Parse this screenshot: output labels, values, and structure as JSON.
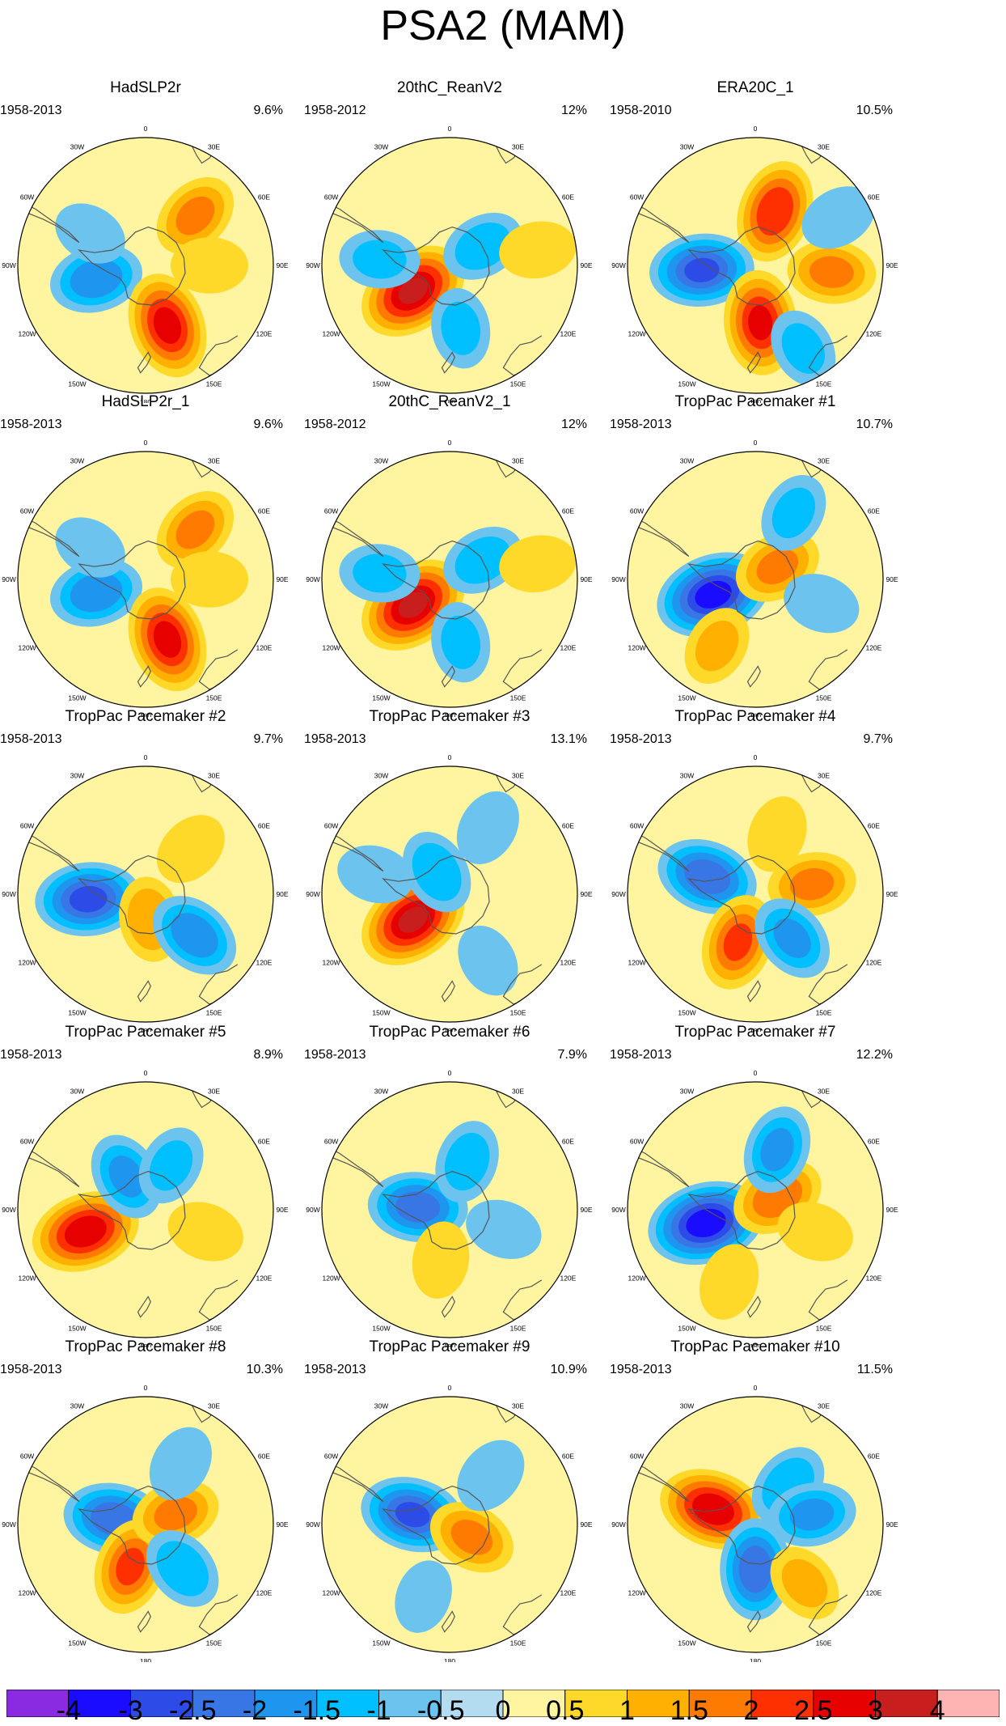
{
  "title": "PSA2 (MAM)",
  "longitude_labels": [
    "0",
    "30E",
    "60E",
    "90E",
    "120E",
    "150E",
    "180",
    "150W",
    "120W",
    "90W",
    "60W",
    "30W"
  ],
  "chart_data": {
    "type": "heatmap",
    "projection": "south polar stereographic",
    "title": "PSA2 (MAM)",
    "colorbar": {
      "levels": [
        -4,
        -3,
        -2.5,
        -2,
        -1.5,
        -1,
        -0.5,
        0,
        0.5,
        1,
        1.5,
        2,
        2.5,
        3,
        4
      ],
      "level_labels": [
        "-4",
        "-3",
        "-2.5",
        "-2",
        "-1.5",
        "-1",
        "-0.5",
        "0",
        "0.5",
        "1",
        "1.5",
        "2",
        "2.5",
        "3",
        "4"
      ],
      "colors": [
        "#8a2be2",
        "#1a0dff",
        "#2d4be6",
        "#3876e6",
        "#1e96f0",
        "#00bfff",
        "#6cc4ee",
        "#b4dcf0",
        "#fff5a0",
        "#ffd92a",
        "#ffb000",
        "#ff7a00",
        "#ff3000",
        "#e60000",
        "#c81e1e",
        "#ffb4b4"
      ]
    },
    "panels": [
      {
        "title": "HadSLP2r",
        "years": "1958-2013",
        "variance": "9.6%",
        "anomalies": [
          {
            "lon": 45,
            "r": 0.55,
            "value": 1.5
          },
          {
            "lon": 255,
            "r": 0.4,
            "value": -1.8
          },
          {
            "lon": 160,
            "r": 0.5,
            "value": 2.6
          },
          {
            "lon": 90,
            "r": 0.5,
            "value": 0.8
          },
          {
            "lon": 300,
            "r": 0.5,
            "value": -0.6
          }
        ]
      },
      {
        "title": "20thC_ReanV2",
        "years": "1958-2012",
        "variance": "12%",
        "anomalies": [
          {
            "lon": 235,
            "r": 0.35,
            "value": 3.0
          },
          {
            "lon": 60,
            "r": 0.3,
            "value": -1.2
          },
          {
            "lon": 170,
            "r": 0.5,
            "value": -1.0
          },
          {
            "lon": 275,
            "r": 0.55,
            "value": -1.0
          },
          {
            "lon": 80,
            "r": 0.7,
            "value": 0.8
          }
        ]
      },
      {
        "title": "ERA20C_1",
        "years": "1958-2010",
        "variance": "10.5%",
        "anomalies": [
          {
            "lon": 20,
            "r": 0.45,
            "value": 2.4
          },
          {
            "lon": 265,
            "r": 0.42,
            "value": -2.5
          },
          {
            "lon": 175,
            "r": 0.45,
            "value": 2.5
          },
          {
            "lon": 95,
            "r": 0.6,
            "value": 1.5
          },
          {
            "lon": 60,
            "r": 0.75,
            "value": -0.8
          },
          {
            "lon": 150,
            "r": 0.75,
            "value": -1.0
          }
        ]
      },
      {
        "title": "HadSLP2r_1",
        "years": "1958-2013",
        "variance": "9.6%",
        "anomalies": [
          {
            "lon": 45,
            "r": 0.55,
            "value": 1.5
          },
          {
            "lon": 255,
            "r": 0.4,
            "value": -1.8
          },
          {
            "lon": 160,
            "r": 0.5,
            "value": 2.6
          },
          {
            "lon": 90,
            "r": 0.5,
            "value": 0.8
          },
          {
            "lon": 300,
            "r": 0.5,
            "value": -0.6
          }
        ]
      },
      {
        "title": "20thC_ReanV2_1",
        "years": "1958-2012",
        "variance": "12%",
        "anomalies": [
          {
            "lon": 235,
            "r": 0.35,
            "value": 3.0
          },
          {
            "lon": 60,
            "r": 0.3,
            "value": -1.2
          },
          {
            "lon": 170,
            "r": 0.5,
            "value": -1.0
          },
          {
            "lon": 275,
            "r": 0.55,
            "value": -1.0
          },
          {
            "lon": 80,
            "r": 0.7,
            "value": 0.8
          }
        ]
      },
      {
        "title": "TropPac Pacemaker #1",
        "years": "1958-2013",
        "variance": "10.7%",
        "anomalies": [
          {
            "lon": 250,
            "r": 0.35,
            "value": -3.2
          },
          {
            "lon": 60,
            "r": 0.2,
            "value": 1.5
          },
          {
            "lon": 30,
            "r": 0.6,
            "value": -1.0
          },
          {
            "lon": 210,
            "r": 0.6,
            "value": 1.0
          },
          {
            "lon": 110,
            "r": 0.55,
            "value": -0.8
          }
        ]
      },
      {
        "title": "TropPac Pacemaker #2",
        "years": "1958-2013",
        "variance": "9.7%",
        "anomalies": [
          {
            "lon": 265,
            "r": 0.45,
            "value": -2.6
          },
          {
            "lon": 170,
            "r": 0.2,
            "value": 1.3
          },
          {
            "lon": 130,
            "r": 0.5,
            "value": -1.8
          },
          {
            "lon": 45,
            "r": 0.5,
            "value": 0.8
          }
        ]
      },
      {
        "title": "TropPac Pacemaker #3",
        "years": "1958-2013",
        "variance": "13.1%",
        "anomalies": [
          {
            "lon": 235,
            "r": 0.35,
            "value": 3.0
          },
          {
            "lon": 330,
            "r": 0.2,
            "value": -1.3
          },
          {
            "lon": 30,
            "r": 0.6,
            "value": -0.8
          },
          {
            "lon": 285,
            "r": 0.6,
            "value": -0.8
          },
          {
            "lon": 150,
            "r": 0.6,
            "value": -0.6
          }
        ]
      },
      {
        "title": "TropPac Pacemaker #4",
        "years": "1958-2013",
        "variance": "9.7%",
        "anomalies": [
          {
            "lon": 290,
            "r": 0.4,
            "value": -2.3
          },
          {
            "lon": 200,
            "r": 0.4,
            "value": 2.0
          },
          {
            "lon": 80,
            "r": 0.45,
            "value": 1.5
          },
          {
            "lon": 140,
            "r": 0.45,
            "value": -1.5
          },
          {
            "lon": 20,
            "r": 0.5,
            "value": 0.8
          }
        ]
      },
      {
        "title": "TropPac Pacemaker #5",
        "years": "1958-2013",
        "variance": "8.9%",
        "anomalies": [
          {
            "lon": 250,
            "r": 0.5,
            "value": 2.8
          },
          {
            "lon": 330,
            "r": 0.3,
            "value": -1.5
          },
          {
            "lon": 30,
            "r": 0.4,
            "value": -1.0
          },
          {
            "lon": 110,
            "r": 0.5,
            "value": 0.8
          }
        ]
      },
      {
        "title": "TropPac Pacemaker #6",
        "years": "1958-2013",
        "variance": "7.9%",
        "anomalies": [
          {
            "lon": 275,
            "r": 0.25,
            "value": -2.2
          },
          {
            "lon": 20,
            "r": 0.4,
            "value": -1.2
          },
          {
            "lon": 110,
            "r": 0.45,
            "value": -0.8
          },
          {
            "lon": 190,
            "r": 0.4,
            "value": 0.8
          }
        ]
      },
      {
        "title": "TropPac Pacemaker #7",
        "years": "1958-2013",
        "variance": "12.2%",
        "anomalies": [
          {
            "lon": 255,
            "r": 0.4,
            "value": -3.3
          },
          {
            "lon": 60,
            "r": 0.2,
            "value": 1.8
          },
          {
            "lon": 20,
            "r": 0.5,
            "value": -1.5
          },
          {
            "lon": 200,
            "r": 0.6,
            "value": 0.8
          },
          {
            "lon": 110,
            "r": 0.5,
            "value": 0.8
          }
        ]
      },
      {
        "title": "TropPac Pacemaker #8",
        "years": "1958-2013",
        "variance": "10.3%",
        "anomalies": [
          {
            "lon": 280,
            "r": 0.25,
            "value": -2.3
          },
          {
            "lon": 200,
            "r": 0.35,
            "value": 2.0
          },
          {
            "lon": 70,
            "r": 0.25,
            "value": 1.5
          },
          {
            "lon": 140,
            "r": 0.45,
            "value": -1.3
          },
          {
            "lon": 30,
            "r": 0.55,
            "value": -0.8
          }
        ]
      },
      {
        "title": "TropPac Pacemaker #9",
        "years": "1958-2013",
        "variance": "10.9%",
        "anomalies": [
          {
            "lon": 285,
            "r": 0.3,
            "value": -2.5
          },
          {
            "lon": 120,
            "r": 0.2,
            "value": 1.5
          },
          {
            "lon": 40,
            "r": 0.5,
            "value": -0.9
          },
          {
            "lon": 200,
            "r": 0.6,
            "value": -0.6
          }
        ]
      },
      {
        "title": "TropPac Pacemaker #10",
        "years": "1958-2013",
        "variance": "11.5%",
        "anomalies": [
          {
            "lon": 290,
            "r": 0.35,
            "value": 2.8
          },
          {
            "lon": 180,
            "r": 0.35,
            "value": -2.3
          },
          {
            "lon": 40,
            "r": 0.4,
            "value": -1.3
          },
          {
            "lon": 80,
            "r": 0.45,
            "value": -1.5
          },
          {
            "lon": 140,
            "r": 0.6,
            "value": 1.0
          }
        ]
      }
    ]
  }
}
